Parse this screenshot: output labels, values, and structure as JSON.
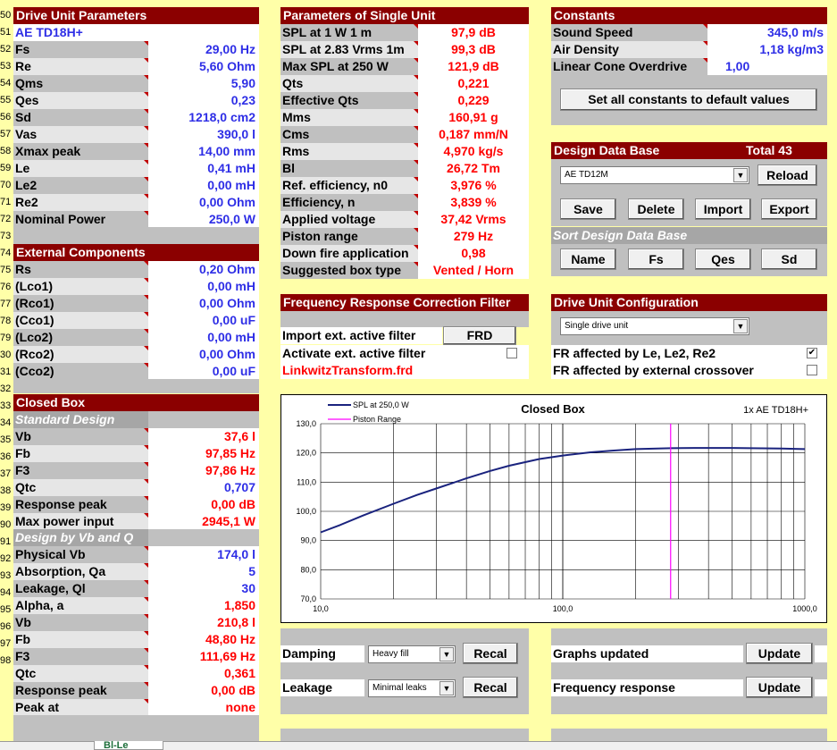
{
  "rows": [
    "50",
    "51",
    "52",
    "53",
    "54",
    "55",
    "56",
    "57",
    "58",
    "59",
    "70",
    "71",
    "72",
    "73",
    "74",
    "75",
    "76",
    "77",
    "78",
    "79",
    "30",
    "31",
    "32",
    "33",
    "34",
    "35",
    "36",
    "37",
    "38",
    "39",
    "90",
    "91",
    "92",
    "93",
    "94",
    "95",
    "96",
    "97",
    "98"
  ],
  "drive": {
    "title": "Drive Unit Parameters",
    "name": "AE TD18H+",
    "params": [
      {
        "label": "Fs",
        "value": "29,00 Hz"
      },
      {
        "label": "Re",
        "value": "5,60 Ohm"
      },
      {
        "label": "Qms",
        "value": "5,90"
      },
      {
        "label": "Qes",
        "value": "0,23"
      },
      {
        "label": "Sd",
        "value": "1218,0 cm2"
      },
      {
        "label": "Vas",
        "value": "390,0 l"
      },
      {
        "label": "Xmax peak",
        "value": "14,00 mm"
      },
      {
        "label": "Le",
        "value": "0,41 mH"
      },
      {
        "label": "Le2",
        "value": "0,00 mH"
      },
      {
        "label": "Re2",
        "value": "0,00 Ohm"
      },
      {
        "label": "Nominal Power",
        "value": "250,0 W"
      }
    ]
  },
  "external": {
    "title": "External Components",
    "params": [
      {
        "label": "Rs",
        "value": "0,20 Ohm"
      },
      {
        "label": "(Lco1)",
        "value": "0,00 mH"
      },
      {
        "label": "(Rco1)",
        "value": "0,00 Ohm"
      },
      {
        "label": "(Cco1)",
        "value": "0,00 uF"
      },
      {
        "label": "(Lco2)",
        "value": "0,00 mH"
      },
      {
        "label": "(Rco2)",
        "value": "0,00 Ohm"
      },
      {
        "label": "(Cco2)",
        "value": "0,00 uF"
      }
    ]
  },
  "closed": {
    "title": "Closed Box",
    "standard_title": "Standard Design",
    "standard": [
      {
        "label": "Vb",
        "value": "37,6 l",
        "color": "red"
      },
      {
        "label": "Fb",
        "value": "97,85 Hz",
        "color": "red"
      },
      {
        "label": "F3",
        "value": "97,86 Hz",
        "color": "red"
      },
      {
        "label": "Qtc",
        "value": "0,707",
        "color": "blue"
      },
      {
        "label": "Response peak",
        "value": "0,00 dB",
        "color": "red"
      },
      {
        "label": "Max power input",
        "value": "2945,1 W",
        "color": "red"
      }
    ],
    "vbq_title": "Design by Vb and Q",
    "vbq": [
      {
        "label": "Physical Vb",
        "value": "174,0 l",
        "color": "blue"
      },
      {
        "label": "Absorption, Qa",
        "value": "5",
        "color": "blue"
      },
      {
        "label": "Leakage, Ql",
        "value": "30",
        "color": "blue"
      },
      {
        "label": "Alpha, a",
        "value": "1,850",
        "color": "red"
      },
      {
        "label": "Vb",
        "value": "210,8 l",
        "color": "red"
      },
      {
        "label": "Fb",
        "value": "48,80 Hz",
        "color": "red"
      },
      {
        "label": "F3",
        "value": "111,69 Hz",
        "color": "red"
      },
      {
        "label": "Qtc",
        "value": "0,361",
        "color": "red"
      },
      {
        "label": "Response peak",
        "value": "0,00 dB",
        "color": "red"
      },
      {
        "label": "Peak at",
        "value": "none",
        "color": "red"
      }
    ]
  },
  "single": {
    "title": "Parameters of Single Unit",
    "params": [
      {
        "label": "SPL at 1 W 1 m",
        "value": "97,9 dB"
      },
      {
        "label": "SPL at 2.83 Vrms 1m",
        "value": "99,3 dB"
      },
      {
        "label": "Max SPL at 250 W",
        "value": "121,9 dB"
      },
      {
        "label": "Qts",
        "value": "0,221"
      },
      {
        "label": "Effective Qts",
        "value": "0,229"
      },
      {
        "label": "Mms",
        "value": "160,91 g"
      },
      {
        "label": "Cms",
        "value": "0,187 mm/N"
      },
      {
        "label": "Rms",
        "value": "4,970 kg/s"
      },
      {
        "label": "Bl",
        "value": "26,72 Tm"
      },
      {
        "label": "Ref. efficiency, n0",
        "value": "3,976 %"
      },
      {
        "label": "Efficiency, n",
        "value": "3,839 %"
      },
      {
        "label": "Applied voltage",
        "value": "37,42 Vrms"
      },
      {
        "label": "Piston range",
        "value": "279 Hz"
      },
      {
        "label": "Down fire application",
        "value": "0,98"
      },
      {
        "label": "Suggested box type",
        "value": "Vented / Horn"
      }
    ]
  },
  "frcf": {
    "title": "Frequency Response Correction Filter",
    "import_label": "Import ext. active filter",
    "frd_button": "FRD",
    "activate_label": "Activate ext. active filter",
    "filename": "LinkwitzTransform.frd"
  },
  "constants": {
    "title": "Constants",
    "params": [
      {
        "label": "Sound Speed",
        "value": "345,0 m/s"
      },
      {
        "label": "Air Density",
        "value": "1,18 kg/m3"
      },
      {
        "label": "Linear Cone Overdrive",
        "value": "1,00"
      }
    ],
    "default_button": "Set all constants to default values"
  },
  "designdb": {
    "title": "Design Data Base",
    "total": "Total 43",
    "selected": "AE TD12M",
    "reload": "Reload",
    "save": "Save",
    "delete": "Delete",
    "import": "Import",
    "export": "Export",
    "sort_title": "Sort Design Data Base",
    "sort_name": "Name",
    "sort_fs": "Fs",
    "sort_qes": "Qes",
    "sort_sd": "Sd"
  },
  "config": {
    "title": "Drive Unit Configuration",
    "selected": "Single drive unit",
    "fr_le": "FR affected by Le, Le2, Re2",
    "fr_le_checked": "✔",
    "fr_xo": "FR affected by external crossover"
  },
  "bottom": {
    "damping_label": "Damping",
    "damping_value": "Heavy fill",
    "leakage_label": "Leakage",
    "leakage_value": "Minimal leaks",
    "recal": "Recal",
    "graphs_label": "Graphs updated",
    "freq_label": "Frequency response",
    "update": "Update",
    "sheet_tab": "Bl-Le"
  },
  "chart_data": {
    "type": "line",
    "title": "Closed Box",
    "subtitle": "1x AE TD18H+",
    "xscale": "log",
    "xlim": [
      10,
      1000
    ],
    "ylim": [
      70,
      130
    ],
    "xticks": [
      "10,0",
      "100,0",
      "1000,0"
    ],
    "yticks": [
      "70,0",
      "80,0",
      "90,0",
      "100,0",
      "110,0",
      "120,0",
      "130,0"
    ],
    "series": [
      {
        "name": "SPL at 250,0 W",
        "color": "#1a237e",
        "x": [
          10,
          12,
          15,
          20,
          25,
          30,
          40,
          50,
          60,
          80,
          100,
          130,
          160,
          200,
          279,
          350,
          400,
          500,
          600,
          800,
          1000
        ],
        "y": [
          92.8,
          95.3,
          98.6,
          102.6,
          105.6,
          107.8,
          111.3,
          113.8,
          115.6,
          117.9,
          119.1,
          120.2,
          120.8,
          121.3,
          121.6,
          121.7,
          121.7,
          121.7,
          121.6,
          121.5,
          121.3
        ]
      },
      {
        "name": "Piston Range",
        "color": "#ff00ff",
        "x": [
          279,
          279
        ],
        "y": [
          70,
          130
        ]
      }
    ]
  }
}
